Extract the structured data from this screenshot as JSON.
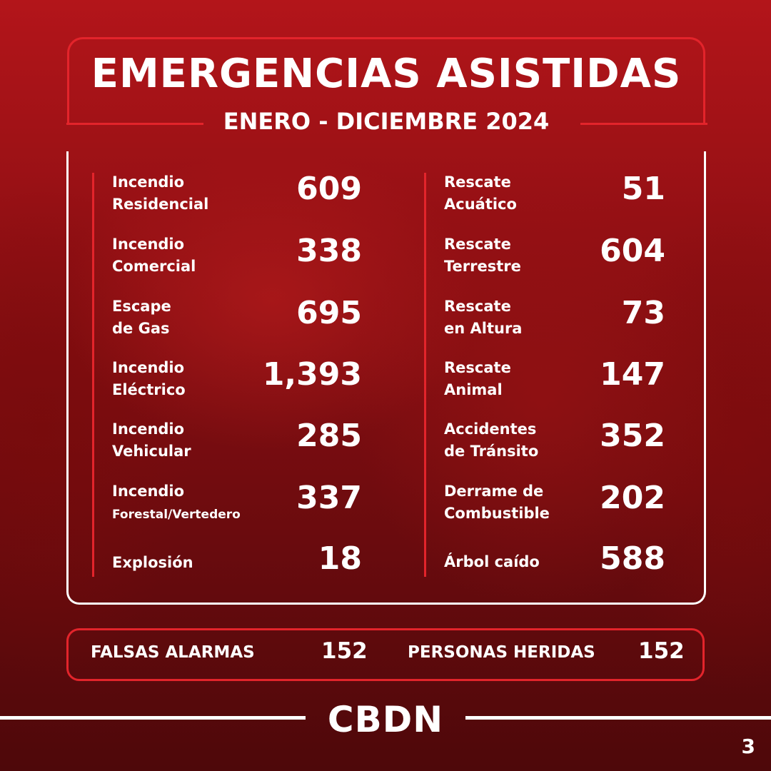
{
  "header": {
    "title": "EMERGENCIAS ASISTIDAS",
    "subtitle": "ENERO - DICIEMBRE 2024"
  },
  "left_stats": [
    {
      "label_line1": "Incendio",
      "label_line2": "Residencial",
      "value": "609"
    },
    {
      "label_line1": "Incendio",
      "label_line2": "Comercial",
      "value": "338"
    },
    {
      "label_line1": "Escape",
      "label_line2": "de Gas",
      "value": "695"
    },
    {
      "label_line1": "Incendio",
      "label_line2": "Eléctrico",
      "value": "1,393"
    },
    {
      "label_line1": "Incendio",
      "label_line2": "Vehicular",
      "value": "285"
    },
    {
      "label_line1": "Incendio",
      "label_line2": "Forestal/Vertedero",
      "value": "337"
    },
    {
      "label_line1": "Explosión",
      "label_line2": "",
      "value": "18"
    }
  ],
  "right_stats": [
    {
      "label_line1": "Rescate",
      "label_line2": "Acuático",
      "value": "51"
    },
    {
      "label_line1": "Rescate",
      "label_line2": "Terrestre",
      "value": "604"
    },
    {
      "label_line1": "Rescate",
      "label_line2": "en Altura",
      "value": "73"
    },
    {
      "label_line1": "Rescate",
      "label_line2": "Animal",
      "value": "147"
    },
    {
      "label_line1": "Accidentes",
      "label_line2": "de Tránsito",
      "value": "352"
    },
    {
      "label_line1": "Derrame de",
      "label_line2": "Combustible",
      "value": "202"
    },
    {
      "label_line1": "Árbol caído",
      "label_line2": "",
      "value": "588"
    }
  ],
  "summary": {
    "false_alarms_label": "FALSAS ALARMAS",
    "false_alarms_value": "152",
    "injured_label": "PERSONAS HERIDAS",
    "injured_value": "152"
  },
  "footer": {
    "brand": "CBDN",
    "page_number": "3"
  },
  "colors": {
    "accent_red": "#e3242b",
    "text": "#ffffff",
    "background": "#7a0d10"
  }
}
